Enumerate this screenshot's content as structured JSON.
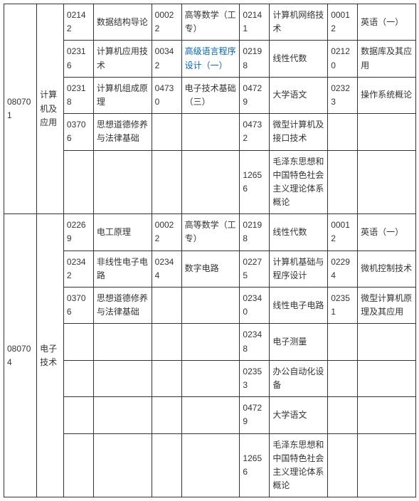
{
  "majors": [
    {
      "code": "080701",
      "name": "计算机及应用",
      "rows": [
        {
          "c1": "02142",
          "n1": "数据结构导论",
          "c2": "00022",
          "n2": "高等数学（工专）",
          "c3": "02141",
          "n3": "计算机网络技术",
          "c4": "00012",
          "n4": "英语（一）"
        },
        {
          "c1": "02316",
          "n1": "计算机应用技术",
          "c2": "00342",
          "n2": "高级语言程序设计（一）",
          "n2_link": true,
          "c3": "02198",
          "n3": "线性代数",
          "c4": "02120",
          "n4": "数据库及其应用"
        },
        {
          "c1": "02318",
          "n1": "计算机组成原理",
          "c2": "04730",
          "n2": "电子技术基础（三）",
          "c3": "04729",
          "n3": "大学语文",
          "c4": "02323",
          "n4": "操作系统概论"
        },
        {
          "c1": "03706",
          "n1": "思想道德修养与法律基础",
          "c2": "",
          "n2": "",
          "c3": "04732",
          "n3": "微型计算机及接口技术",
          "c4": "",
          "n4": ""
        },
        {
          "c1": "",
          "n1": "",
          "c2": "",
          "n2": "",
          "c3": "12656",
          "n3": "毛泽东思想和中国特色社会主义理论体系概论",
          "c4": "",
          "n4": ""
        }
      ]
    },
    {
      "code": "080704",
      "name": "电子技术",
      "rows": [
        {
          "c1": "02269",
          "n1": "电工原理",
          "c2": "00022",
          "n2": "高等数学（工专）",
          "c3": "02198",
          "n3": "线性代数",
          "c4": "00012",
          "n4": "英语（一）"
        },
        {
          "c1": "02342",
          "n1": "非线性电子电路",
          "c2": "02344",
          "n2": "数字电路",
          "c3": "02275",
          "n3": "计算机基础与程序设计",
          "c4": "02294",
          "n4": "微机控制技术"
        },
        {
          "c1": "03706",
          "n1": "思想道德修养与法律基础",
          "c2": "",
          "n2": "",
          "c3": "02340",
          "n3": "线性电子电路",
          "c4": "02351",
          "n4": "微型计算机原理及其应用"
        },
        {
          "c1": "",
          "n1": "",
          "c2": "",
          "n2": "",
          "c3": "02348",
          "n3": "电子测量",
          "c4": "",
          "n4": ""
        },
        {
          "c1": "",
          "n1": "",
          "c2": "",
          "n2": "",
          "c3": "02353",
          "n3": "办公自动化设备",
          "c4": "",
          "n4": ""
        },
        {
          "c1": "",
          "n1": "",
          "c2": "",
          "n2": "",
          "c3": "04729",
          "n3": "大学语文",
          "c4": "",
          "n4": ""
        },
        {
          "c1": "",
          "n1": "",
          "c2": "",
          "n2": "",
          "c3": "12656",
          "n3": "毛泽东思想和中国特色社会主义理论体系概论",
          "c4": "",
          "n4": ""
        }
      ]
    }
  ]
}
